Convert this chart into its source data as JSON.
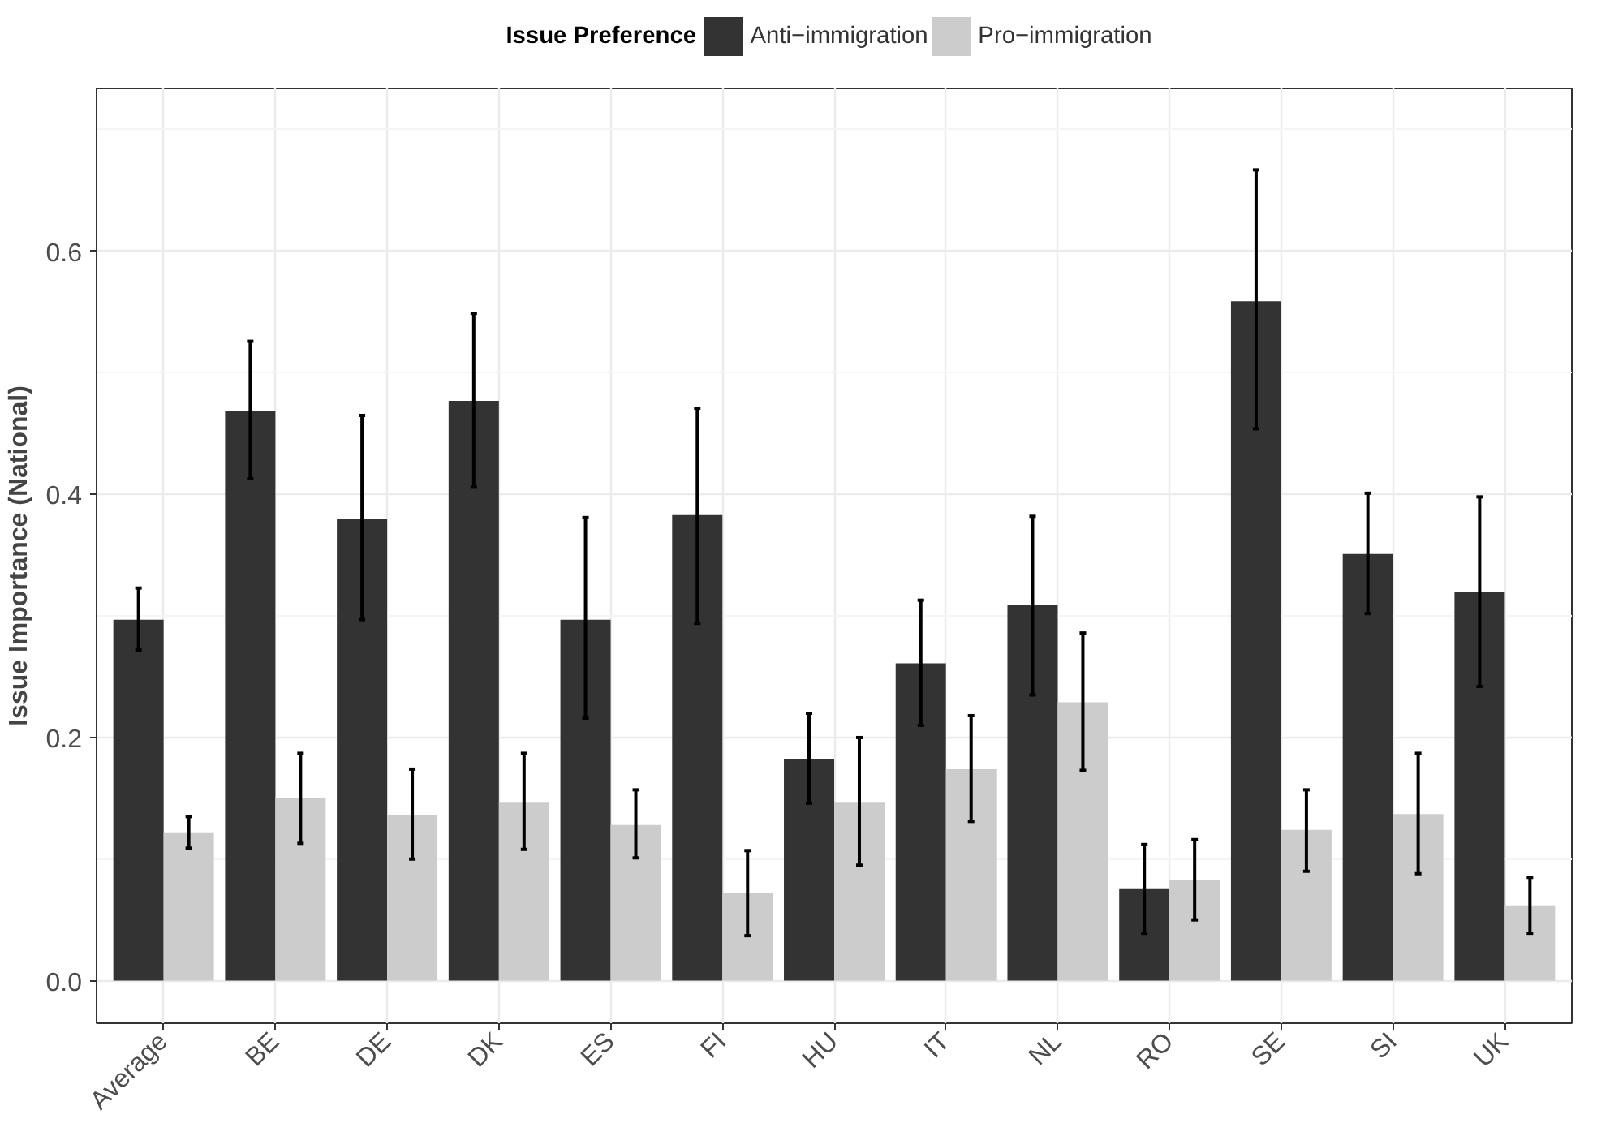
{
  "chart_data": {
    "type": "bar",
    "ylabel": "Issue Importance (National)",
    "legend_title": "Issue Preference",
    "categories": [
      "Average",
      "BE",
      "DE",
      "DK",
      "ES",
      "FI",
      "HU",
      "IT",
      "NL",
      "RO",
      "SE",
      "SI",
      "UK"
    ],
    "series": [
      {
        "name": "Anti−immigration",
        "color": "#333333",
        "values": [
          0.297,
          0.469,
          0.38,
          0.477,
          0.297,
          0.383,
          0.182,
          0.261,
          0.309,
          0.076,
          0.559,
          0.351,
          0.32
        ],
        "errors": [
          [
            0.272,
            0.323
          ],
          [
            0.413,
            0.526
          ],
          [
            0.297,
            0.465
          ],
          [
            0.406,
            0.549
          ],
          [
            0.216,
            0.381
          ],
          [
            0.294,
            0.471
          ],
          [
            0.146,
            0.22
          ],
          [
            0.21,
            0.313
          ],
          [
            0.235,
            0.382
          ],
          [
            0.039,
            0.112
          ],
          [
            0.454,
            0.667
          ],
          [
            0.302,
            0.401
          ],
          [
            0.242,
            0.398
          ]
        ]
      },
      {
        "name": "Pro−immigration",
        "color": "#cccccc",
        "values": [
          0.122,
          0.15,
          0.136,
          0.147,
          0.128,
          0.072,
          0.147,
          0.174,
          0.229,
          0.083,
          0.124,
          0.137,
          0.062
        ],
        "errors": [
          [
            0.109,
            0.135
          ],
          [
            0.113,
            0.187
          ],
          [
            0.1,
            0.174
          ],
          [
            0.108,
            0.187
          ],
          [
            0.101,
            0.157
          ],
          [
            0.037,
            0.107
          ],
          [
            0.095,
            0.2
          ],
          [
            0.131,
            0.218
          ],
          [
            0.173,
            0.286
          ],
          [
            0.05,
            0.116
          ],
          [
            0.09,
            0.157
          ],
          [
            0.088,
            0.187
          ],
          [
            0.039,
            0.085
          ]
        ]
      }
    ],
    "ylim": [
      -0.035,
      0.734
    ],
    "yticks": [
      {
        "value": 0,
        "label": "0.0"
      },
      {
        "value": 0.2,
        "label": "0.2"
      },
      {
        "value": 0.4,
        "label": "0.4"
      },
      {
        "value": 0.6,
        "label": "0.6"
      }
    ],
    "grid": true,
    "legend": "top"
  }
}
